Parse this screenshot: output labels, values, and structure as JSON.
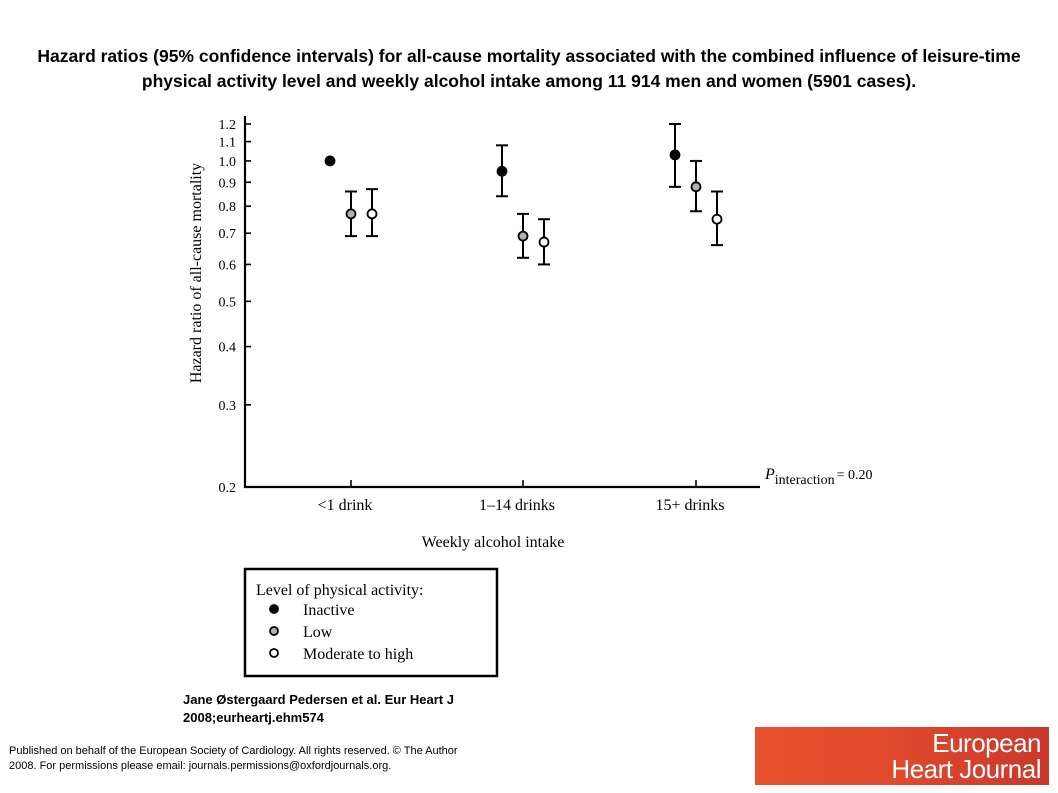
{
  "title": "Hazard ratios (95% confidence intervals) for all-cause mortality associated with the combined influence of leisure-time physical activity level and weekly alcohol intake among 11 914 men and women (5901 cases).",
  "citation": "Jane Østergaard Pedersen et al. Eur Heart J\n2008;eurheartj.ehm574",
  "footer": "Published on behalf of the European Society of Cardiology. All rights reserved. © The Author\n   2008. For permissions please email: journals.permissions@oxfordjournals.org.",
  "logo": {
    "line1": "European",
    "line2": "Heart Journal",
    "color": "#e14a2c"
  },
  "chart_data": {
    "type": "scatter",
    "xlabel": "Weekly alcohol intake",
    "ylabel": "Hazard ratio of all-cause mortality",
    "y_scale": "log",
    "ylim": [
      0.2,
      1.2
    ],
    "y_ticks": [
      "0.2",
      "0.3",
      "0.4",
      "0.5",
      "0.6",
      "0.7",
      "0.8",
      "0.9",
      "1.0",
      "1.1",
      "1.2"
    ],
    "categories": [
      "<1 drink",
      "1–14 drinks",
      "15+ drinks"
    ],
    "annotation": {
      "p": "P",
      "sub": "interaction",
      "rest": "= 0.20"
    },
    "legend_title": "Level of physical activity:",
    "series": [
      {
        "name": "Inactive",
        "fill": "#000000",
        "points": [
          {
            "y": 1.0,
            "lo": null,
            "hi": null
          },
          {
            "y": 0.95,
            "lo": 0.84,
            "hi": 1.08
          },
          {
            "y": 1.03,
            "lo": 0.88,
            "hi": 1.2
          }
        ]
      },
      {
        "name": "Low",
        "fill": "#b0b0b0",
        "points": [
          {
            "y": 0.77,
            "lo": 0.69,
            "hi": 0.86
          },
          {
            "y": 0.69,
            "lo": 0.62,
            "hi": 0.77
          },
          {
            "y": 0.88,
            "lo": 0.78,
            "hi": 1.0
          }
        ]
      },
      {
        "name": "Moderate to high",
        "fill": "#ffffff",
        "points": [
          {
            "y": 0.77,
            "lo": 0.69,
            "hi": 0.87
          },
          {
            "y": 0.67,
            "lo": 0.6,
            "hi": 0.75
          },
          {
            "y": 0.75,
            "lo": 0.66,
            "hi": 0.86
          }
        ]
      }
    ]
  }
}
